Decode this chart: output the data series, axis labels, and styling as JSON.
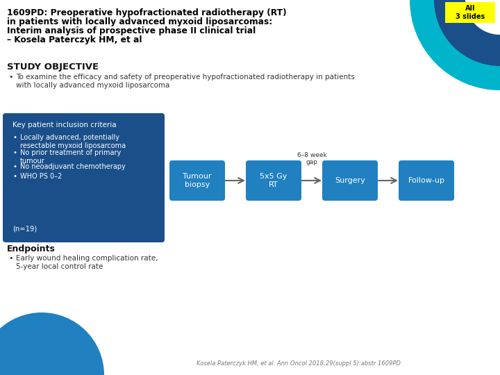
{
  "title_line1": "1609PD: Preoperative hypofractionated radiotherapy (RT)",
  "title_line2": "in patients with locally advanced myxoid liposarcomas:",
  "title_line3": "Interim analysis of prospective phase II clinical trial",
  "title_line4": "– Kosela Paterczyk HM, et al",
  "badge_text": "All\n3 slides",
  "badge_bg": "#FFFF00",
  "badge_text_color": "#000000",
  "section1_header": "STUDY OBJECTIVE",
  "section1_bullet1": "To examine the efficacy and safety of preoperative hypofractionated radiotherapy in patients",
  "section1_bullet2": "with locally advanced myxoid liposarcoma",
  "criteria_box_bg": "#1a4f8a",
  "criteria_header": "Key patient inclusion criteria",
  "criteria_bullets": [
    "Locally advanced, potentially\nresectable myxoid liposarcoma",
    "No prior treatment of primary\ntumour",
    "No neoadjuvant chemotherapy",
    "WHO PS 0–2"
  ],
  "criteria_n": "(n=19)",
  "flow_boxes": [
    "Tumour\nbiopsy",
    "5x5 Gy\nRT",
    "Surgery",
    "Follow-up"
  ],
  "flow_box_color": "#2080c0",
  "flow_box_text_color": "#ffffff",
  "gap_label": "6–8 week\ngap",
  "endpoints_header": "Endpoints",
  "endpoints_bullet1": "Early wound healing complication rate,",
  "endpoints_bullet2": "5-year local control rate",
  "footer": "Kosela Paterczyk HM, et al. Ann Oncol 2018;29(suppl 5):abstr 1609PD",
  "bg_color": "#ffffff",
  "title_color": "#000000",
  "teal_arc_color": "#00b4cc",
  "dark_blue_arc_color": "#1a4f8a",
  "bottom_circle_color": "#2080c0"
}
